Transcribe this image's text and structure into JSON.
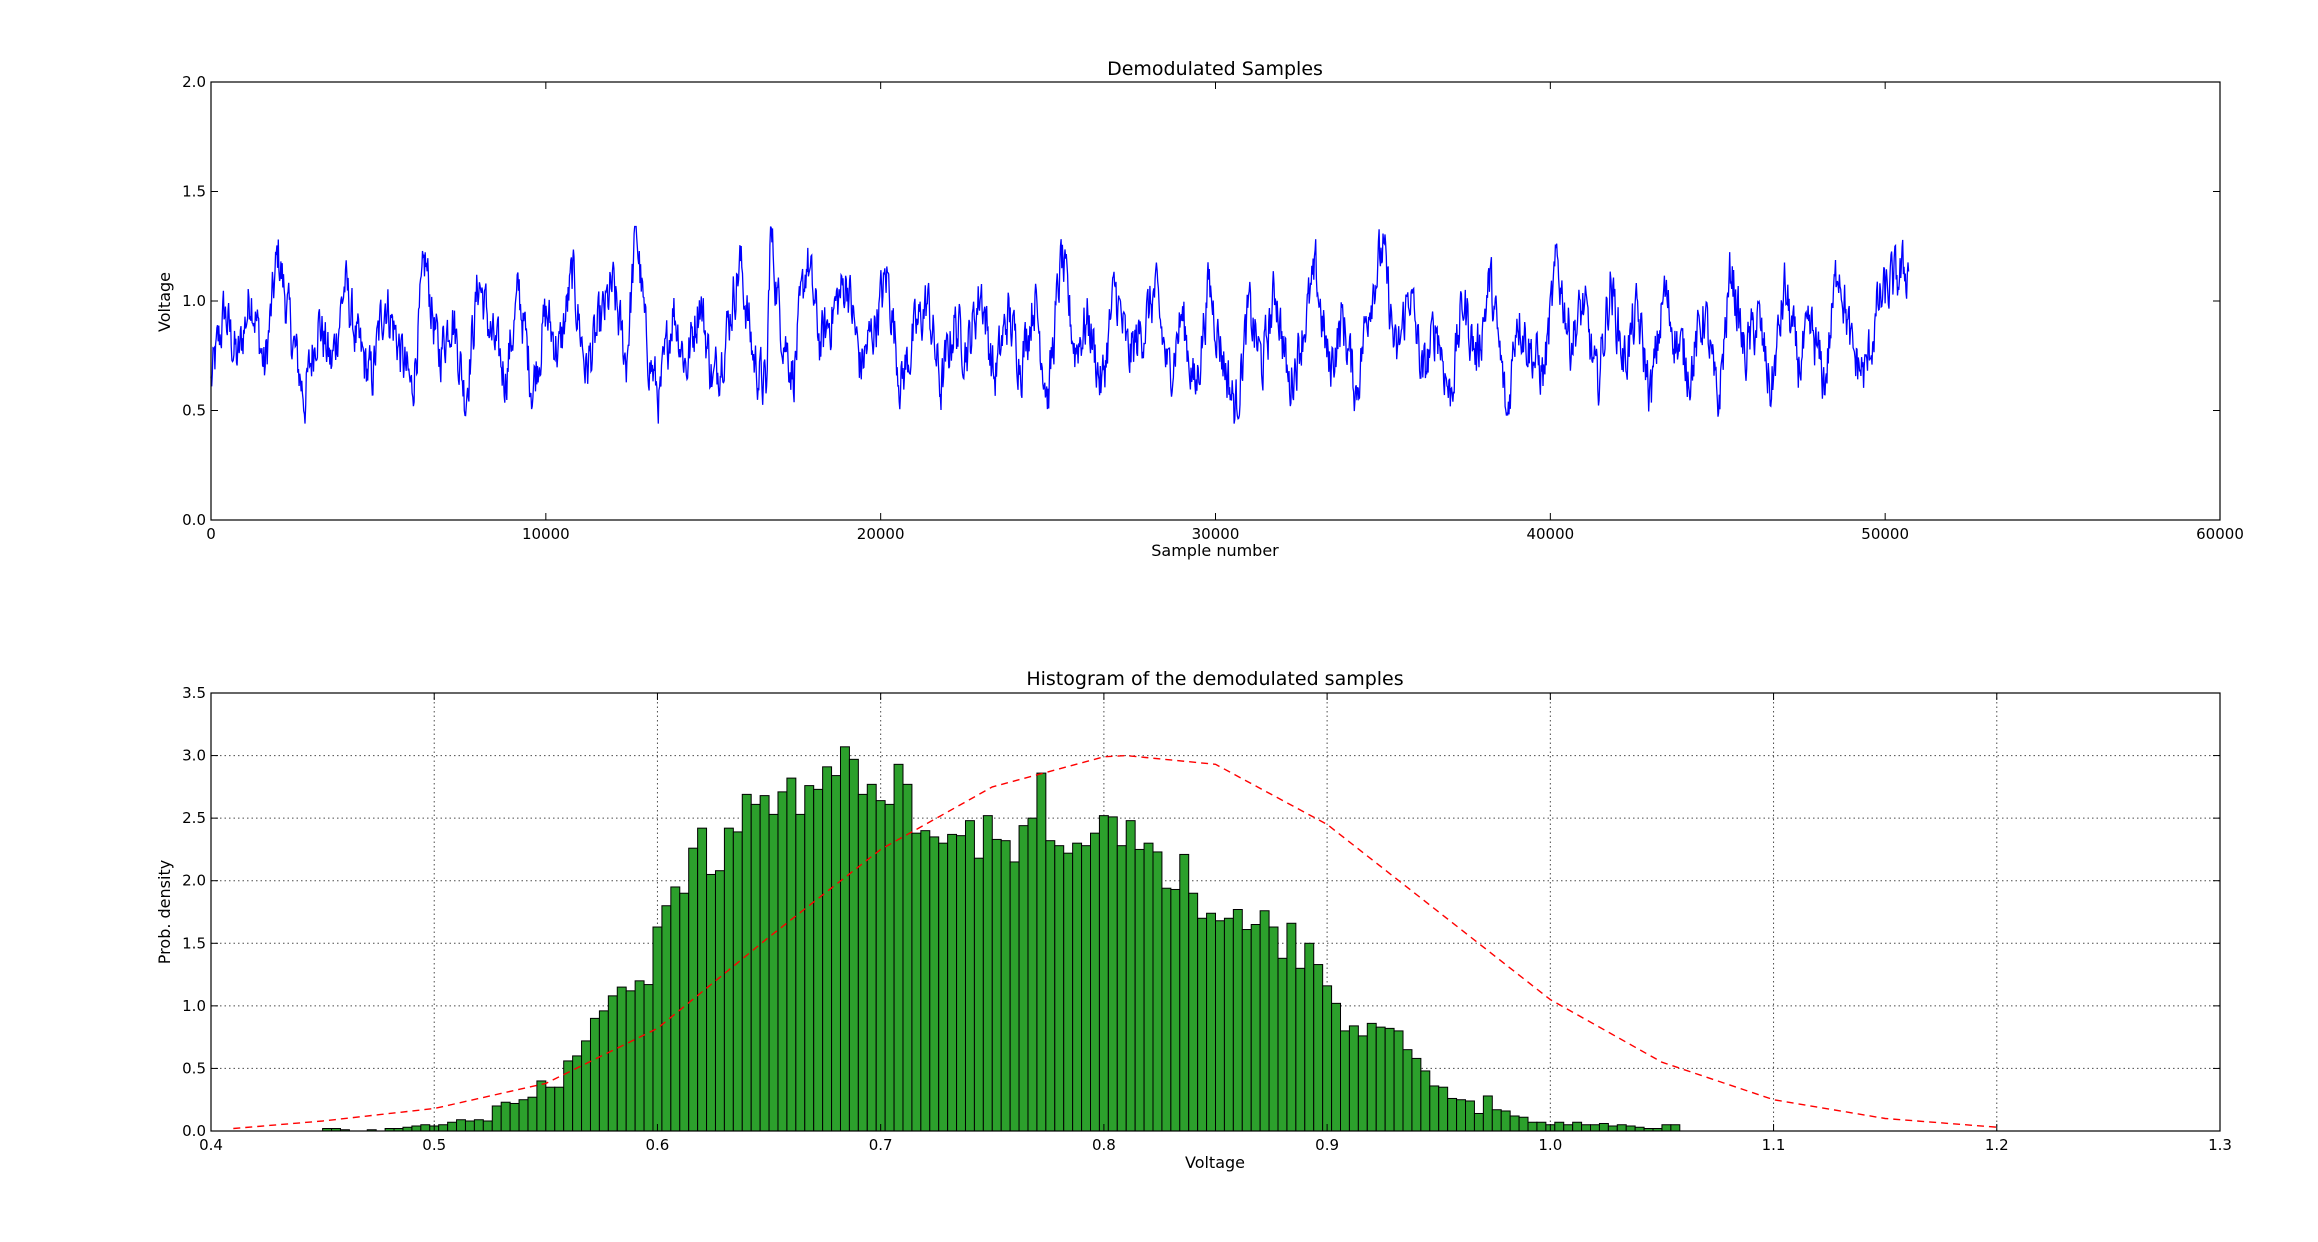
{
  "chart_data": [
    {
      "type": "line",
      "title": "Demodulated Samples",
      "xlabel": "Sample number",
      "ylabel": "Voltage",
      "xlim": [
        0,
        60000
      ],
      "ylim": [
        0,
        2.0
      ],
      "xticks": [
        "0",
        "10000",
        "20000",
        "30000",
        "40000",
        "50000",
        "60000"
      ],
      "xtick_values": [
        0,
        10000,
        20000,
        30000,
        40000,
        50000,
        60000
      ],
      "yticks": [
        "0.0",
        "0.5",
        "1.0",
        "1.5",
        "2.0"
      ],
      "ytick_values": [
        0,
        0.5,
        1.0,
        1.5,
        2.0
      ],
      "grid": false,
      "series": [
        {
          "color": "#0000ff",
          "x_range": [
            0,
            50700
          ],
          "y_envelope_approx": [
            0.44,
            1.34
          ],
          "x_points": [
            0,
            400,
            800,
            1200,
            1600,
            2000,
            2400,
            2800,
            3200,
            3600,
            4000,
            4400,
            4800,
            5200,
            5600,
            6000,
            6400,
            6800,
            7200,
            7600,
            8000,
            8400,
            8800,
            9200,
            9600,
            10000,
            10400,
            10800,
            11200,
            11600,
            12000,
            12400,
            12700,
            13000,
            13400,
            13800,
            14200,
            14600,
            15000,
            15400,
            15800,
            16200,
            16600,
            16700,
            17000,
            17400,
            17800,
            18200,
            18600,
            19000,
            19400,
            19800,
            20200,
            20600,
            21000,
            21400,
            21800,
            22200,
            22600,
            23000,
            23400,
            23800,
            24200,
            24600,
            25000,
            25400,
            25800,
            26200,
            26600,
            27000,
            27400,
            27800,
            28200,
            28600,
            29000,
            29400,
            29800,
            30200,
            30600,
            31000,
            31400,
            31800,
            32200,
            32600,
            33000,
            33400,
            33800,
            34200,
            34600,
            35000,
            35400,
            35800,
            36200,
            36600,
            37000,
            37400,
            37800,
            38200,
            38600,
            38700,
            39000,
            39400,
            39800,
            40200,
            40600,
            41000,
            41400,
            41800,
            42200,
            42600,
            43000,
            43400,
            43800,
            44200,
            44600,
            45000,
            45400,
            45800,
            46200,
            46600,
            47000,
            47400,
            47800,
            48200,
            48600,
            49000,
            49400,
            49800,
            50200,
            50700
          ],
          "values": [
            0.62,
            0.95,
            0.72,
            1.05,
            0.68,
            1.22,
            0.85,
            0.55,
            0.92,
            0.7,
            1.08,
            0.78,
            0.64,
            1.02,
            0.8,
            0.58,
            1.18,
            0.74,
            0.96,
            0.56,
            1.1,
            0.82,
            0.66,
            1.04,
            0.6,
            0.94,
            0.76,
            1.12,
            0.68,
            0.88,
            1.06,
            0.72,
            1.34,
            0.8,
            0.54,
            0.98,
            0.7,
            1.02,
            0.62,
            0.86,
            1.18,
            0.74,
            0.58,
            1.33,
            0.92,
            0.66,
            1.2,
            0.8,
            0.96,
            1.1,
            0.7,
            0.88,
            1.12,
            0.62,
            0.84,
            1.0,
            0.6,
            0.9,
            0.78,
            1.06,
            0.64,
            0.94,
            0.72,
            1.02,
            0.56,
            1.2,
            0.78,
            0.92,
            0.6,
            1.06,
            0.74,
            0.86,
            1.04,
            0.66,
            0.94,
            0.58,
            1.08,
            0.76,
            0.5,
            0.96,
            0.7,
            1.06,
            0.6,
            0.86,
            1.12,
            0.68,
            0.92,
            0.58,
            1.02,
            1.24,
            0.72,
            1.06,
            0.64,
            0.9,
            0.56,
            1.0,
            0.74,
            1.1,
            0.62,
            0.44,
            0.96,
            0.78,
            0.66,
            1.18,
            0.82,
            0.98,
            0.6,
            1.08,
            0.72,
            0.94,
            0.56,
            1.04,
            0.8,
            0.68,
            0.96,
            0.5,
            1.16,
            0.74,
            0.92,
            0.58,
            1.06,
            0.7,
            0.86,
            0.62,
            1.2,
            0.76,
            0.66,
            0.98,
            1.08,
            1.15
          ]
        }
      ]
    },
    {
      "type": "bar",
      "title": "Histogram of the demodulated samples",
      "xlabel": "Voltage",
      "ylabel": "Prob. density",
      "xlim": [
        0.4,
        1.3
      ],
      "ylim": [
        0,
        3.5
      ],
      "xticks": [
        "0.4",
        "0.5",
        "0.6",
        "0.7",
        "0.8",
        "0.9",
        "1.0",
        "1.1",
        "1.2",
        "1.3"
      ],
      "xtick_values": [
        0.4,
        0.5,
        0.6,
        0.7,
        0.8,
        0.9,
        1.0,
        1.1,
        1.2,
        1.3
      ],
      "yticks": [
        "0.0",
        "0.5",
        "1.0",
        "1.5",
        "2.0",
        "2.5",
        "3.0",
        "3.5"
      ],
      "ytick_values": [
        0,
        0.5,
        1.0,
        1.5,
        2.0,
        2.5,
        3.0,
        3.5
      ],
      "grid": true,
      "bar_color": "#2ca02c",
      "bin_start": 0.41,
      "bin_width": 0.004,
      "values": [
        0,
        0,
        0,
        0,
        0,
        0,
        0,
        0,
        0,
        0,
        0.02,
        0.02,
        0.01,
        0.0,
        0.0,
        0.01,
        0.0,
        0.02,
        0.02,
        0.03,
        0.04,
        0.05,
        0.04,
        0.05,
        0.07,
        0.09,
        0.08,
        0.09,
        0.08,
        0.2,
        0.23,
        0.22,
        0.25,
        0.27,
        0.4,
        0.35,
        0.35,
        0.56,
        0.6,
        0.72,
        0.9,
        0.96,
        1.08,
        1.15,
        1.12,
        1.2,
        1.17,
        1.63,
        1.8,
        1.95,
        1.9,
        2.26,
        2.42,
        2.05,
        2.08,
        2.42,
        2.39,
        2.69,
        2.61,
        2.68,
        2.53,
        2.71,
        2.82,
        2.53,
        2.76,
        2.73,
        2.91,
        2.84,
        3.07,
        2.97,
        2.69,
        2.77,
        2.64,
        2.61,
        2.93,
        2.77,
        2.38,
        2.4,
        2.35,
        2.3,
        2.37,
        2.36,
        2.48,
        2.18,
        2.52,
        2.33,
        2.32,
        2.15,
        2.44,
        2.5,
        2.86,
        2.32,
        2.28,
        2.22,
        2.3,
        2.28,
        2.38,
        2.52,
        2.51,
        2.28,
        2.48,
        2.25,
        2.3,
        2.23,
        1.94,
        1.93,
        2.21,
        1.9,
        1.7,
        1.74,
        1.68,
        1.7,
        1.77,
        1.61,
        1.65,
        1.76,
        1.63,
        1.38,
        1.66,
        1.3,
        1.5,
        1.33,
        1.16,
        1.02,
        0.8,
        0.84,
        0.76,
        0.86,
        0.83,
        0.82,
        0.8,
        0.65,
        0.58,
        0.48,
        0.36,
        0.35,
        0.26,
        0.25,
        0.24,
        0.14,
        0.28,
        0.17,
        0.16,
        0.12,
        0.11,
        0.07,
        0.07,
        0.05,
        0.07,
        0.05,
        0.07,
        0.05,
        0.05,
        0.06,
        0.04,
        0.05,
        0.04,
        0.03,
        0.02,
        0.02,
        0.05,
        0.05
      ],
      "series": [
        {
          "type": "line",
          "style": "dashed",
          "color": "#ff0000",
          "x": [
            0.41,
            0.45,
            0.5,
            0.55,
            0.6,
            0.65,
            0.7,
            0.75,
            0.8,
            0.81,
            0.85,
            0.9,
            0.95,
            1.0,
            1.05,
            1.1,
            1.15,
            1.2
          ],
          "values": [
            0.02,
            0.08,
            0.18,
            0.38,
            0.82,
            1.55,
            2.25,
            2.75,
            2.99,
            3.0,
            2.93,
            2.45,
            1.75,
            1.05,
            0.55,
            0.25,
            0.1,
            0.03
          ]
        }
      ]
    }
  ]
}
